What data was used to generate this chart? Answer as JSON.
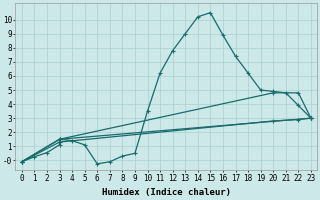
{
  "bg_color": "#cce8e8",
  "grid_color": "#aacfcf",
  "line_color": "#1a6b6b",
  "line_width": 0.9,
  "marker": "+",
  "markersize": 3,
  "markeredgewidth": 0.8,
  "xlabel": "Humidex (Indice chaleur)",
  "xlabel_fontsize": 6.5,
  "tick_fontsize": 5.5,
  "xlim": [
    -0.5,
    23.5
  ],
  "ylim": [
    -0.7,
    11.2
  ],
  "xticks": [
    0,
    1,
    2,
    3,
    4,
    5,
    6,
    7,
    8,
    9,
    10,
    11,
    12,
    13,
    14,
    15,
    16,
    17,
    18,
    19,
    20,
    21,
    22,
    23
  ],
  "yticks": [
    0,
    1,
    2,
    3,
    4,
    5,
    6,
    7,
    8,
    9,
    10
  ],
  "ytick_labels": [
    "-0",
    "1",
    "2",
    "3",
    "4",
    "5",
    "6",
    "7",
    "8",
    "9",
    "10"
  ],
  "line1_x": [
    0,
    1,
    2,
    3,
    3,
    4,
    5,
    6,
    7,
    8,
    9,
    10,
    11,
    12,
    13,
    14,
    15,
    16,
    17,
    18,
    19,
    20,
    21,
    22,
    23
  ],
  "line1_y": [
    -0.1,
    0.25,
    0.55,
    1.1,
    1.5,
    1.4,
    1.1,
    -0.25,
    -0.1,
    0.3,
    0.5,
    3.5,
    6.2,
    7.8,
    9.0,
    10.2,
    10.5,
    8.9,
    7.4,
    6.2,
    5.0,
    4.9,
    4.8,
    3.9,
    3.0
  ],
  "line2_x": [
    0,
    3,
    23
  ],
  "line2_y": [
    -0.1,
    1.5,
    3.0
  ],
  "line3_x": [
    0,
    3,
    20,
    22,
    23
  ],
  "line3_y": [
    -0.1,
    1.5,
    4.8,
    4.8,
    3.0
  ],
  "line4_x": [
    0,
    3,
    20,
    22,
    23
  ],
  "line4_y": [
    -0.1,
    1.3,
    2.8,
    2.9,
    3.0
  ]
}
